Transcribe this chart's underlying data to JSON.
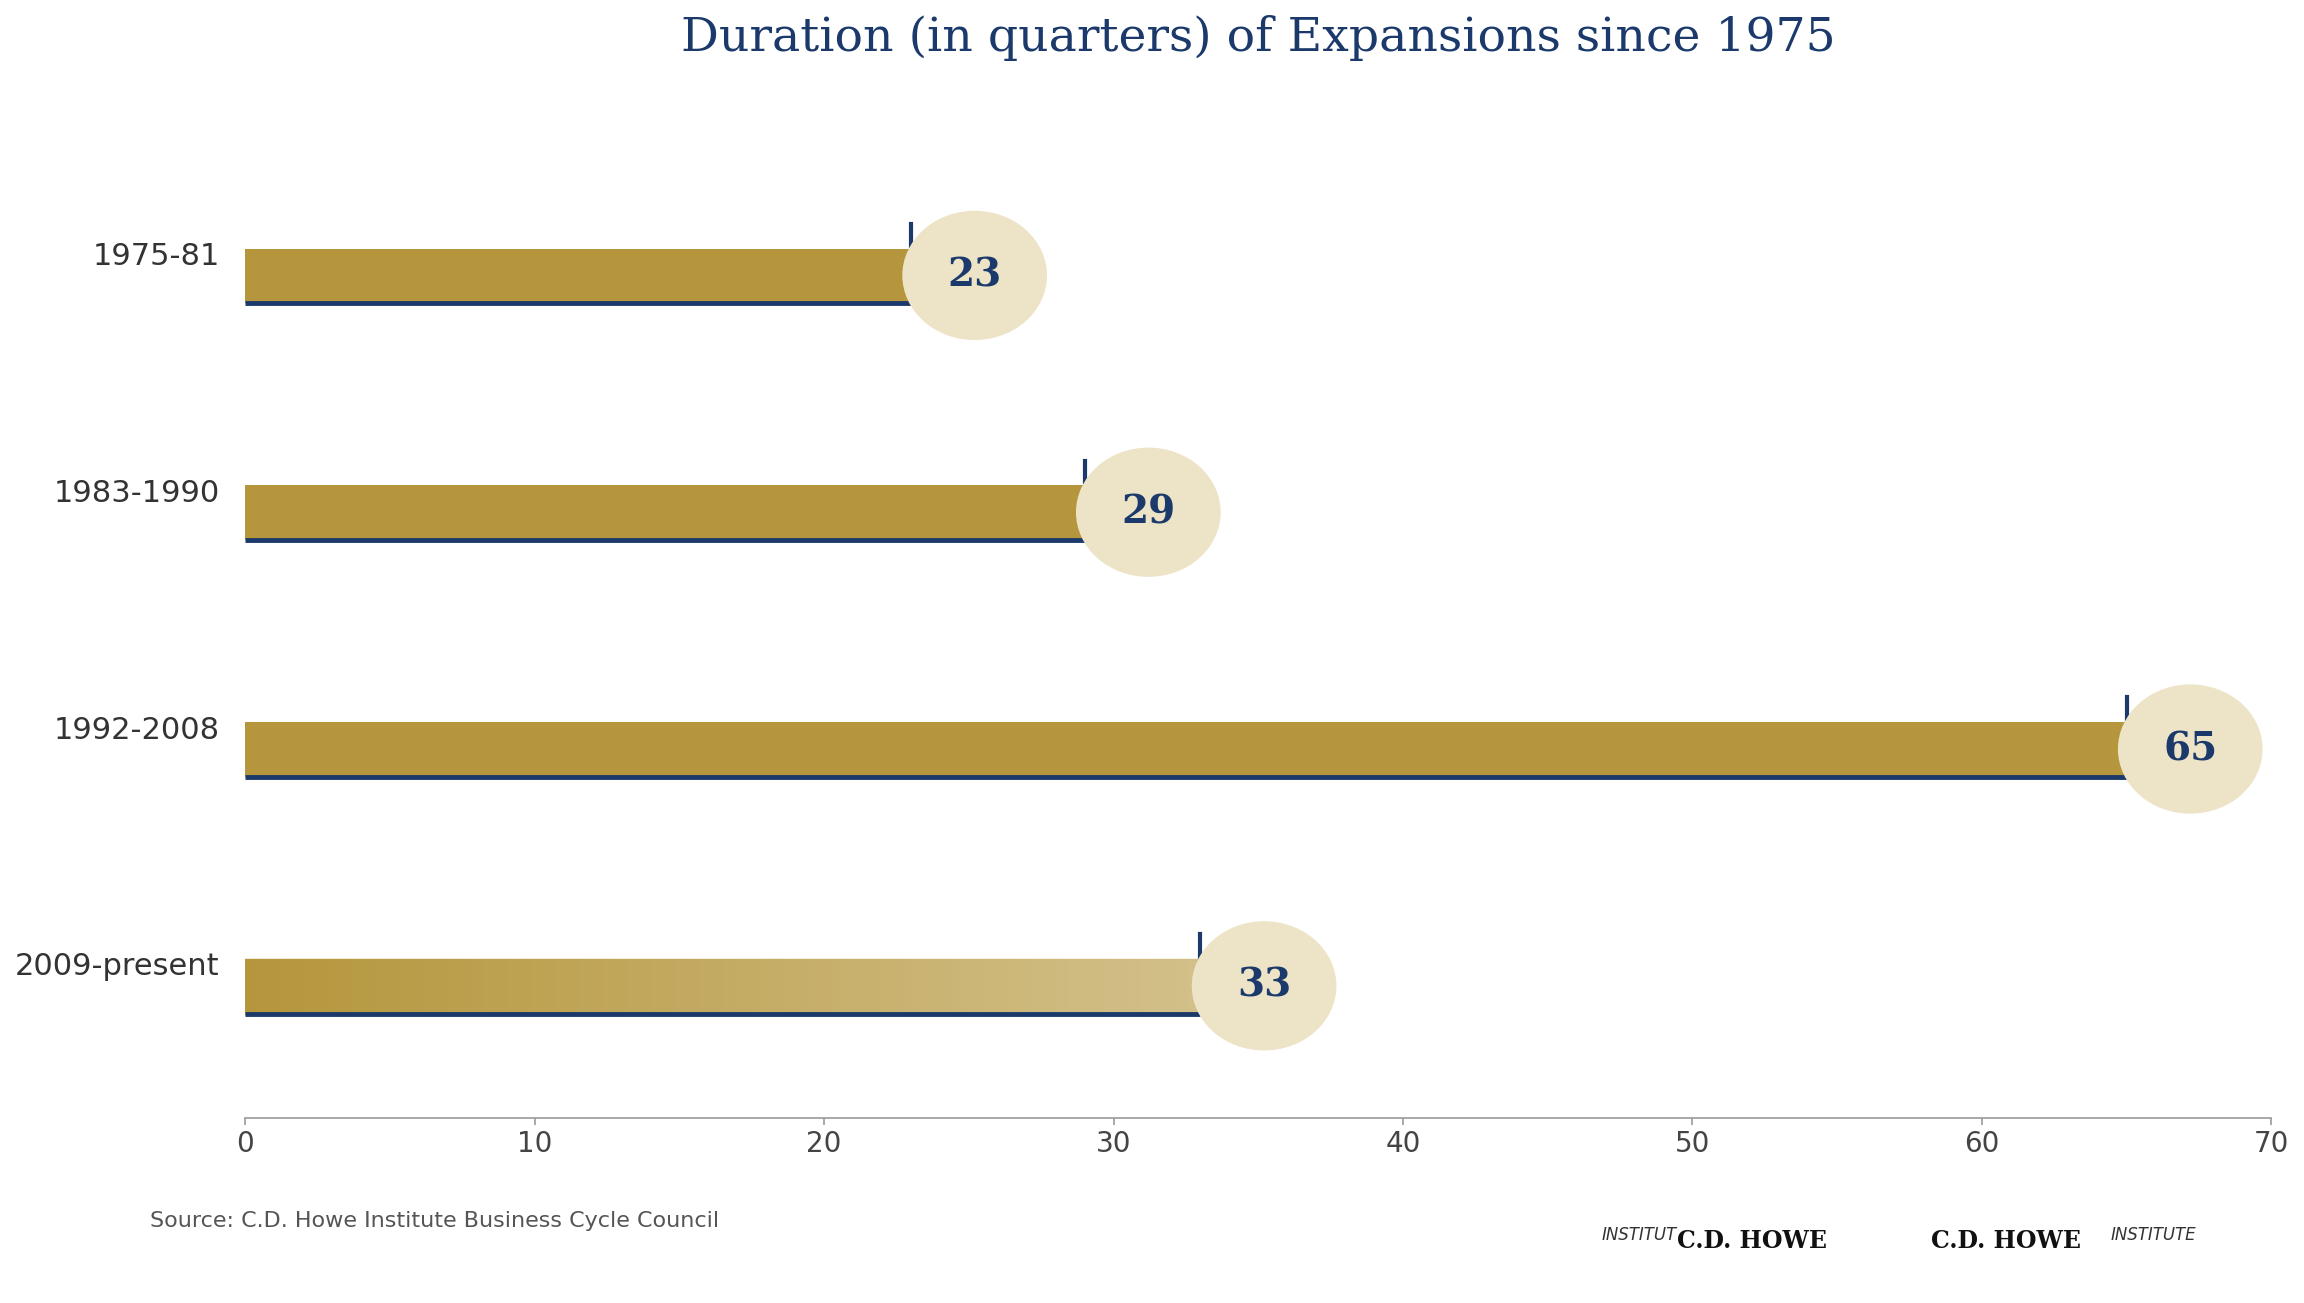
{
  "title": "Duration (in quarters) of Expansions since 1975",
  "categories": [
    "2009-present",
    "1992-2008",
    "1983-1990",
    "1975-81"
  ],
  "values": [
    33,
    65,
    29,
    23
  ],
  "bar_color": "#B5963C",
  "bar_edge_color": "#1B3A6B",
  "bar_height": 0.42,
  "title_color": "#1B3A6B",
  "title_fontsize": 34,
  "label_color": "#333333",
  "label_fontsize": 22,
  "tick_fontsize": 20,
  "xlim": [
    0,
    70
  ],
  "xticks": [
    0,
    10,
    20,
    30,
    40,
    50,
    60,
    70
  ],
  "source_text": "Source: C.D. Howe Institute Business Cycle Council",
  "source_fontsize": 16,
  "bubble_color": "#EDE4C8",
  "bubble_text_color": "#1B3A6B",
  "bubble_fontsize": 28,
  "background_color": "#FFFFFF",
  "axis_color": "#999999",
  "bar_bottom_line_color": "#1B3A6B",
  "last_bar_fade": true
}
